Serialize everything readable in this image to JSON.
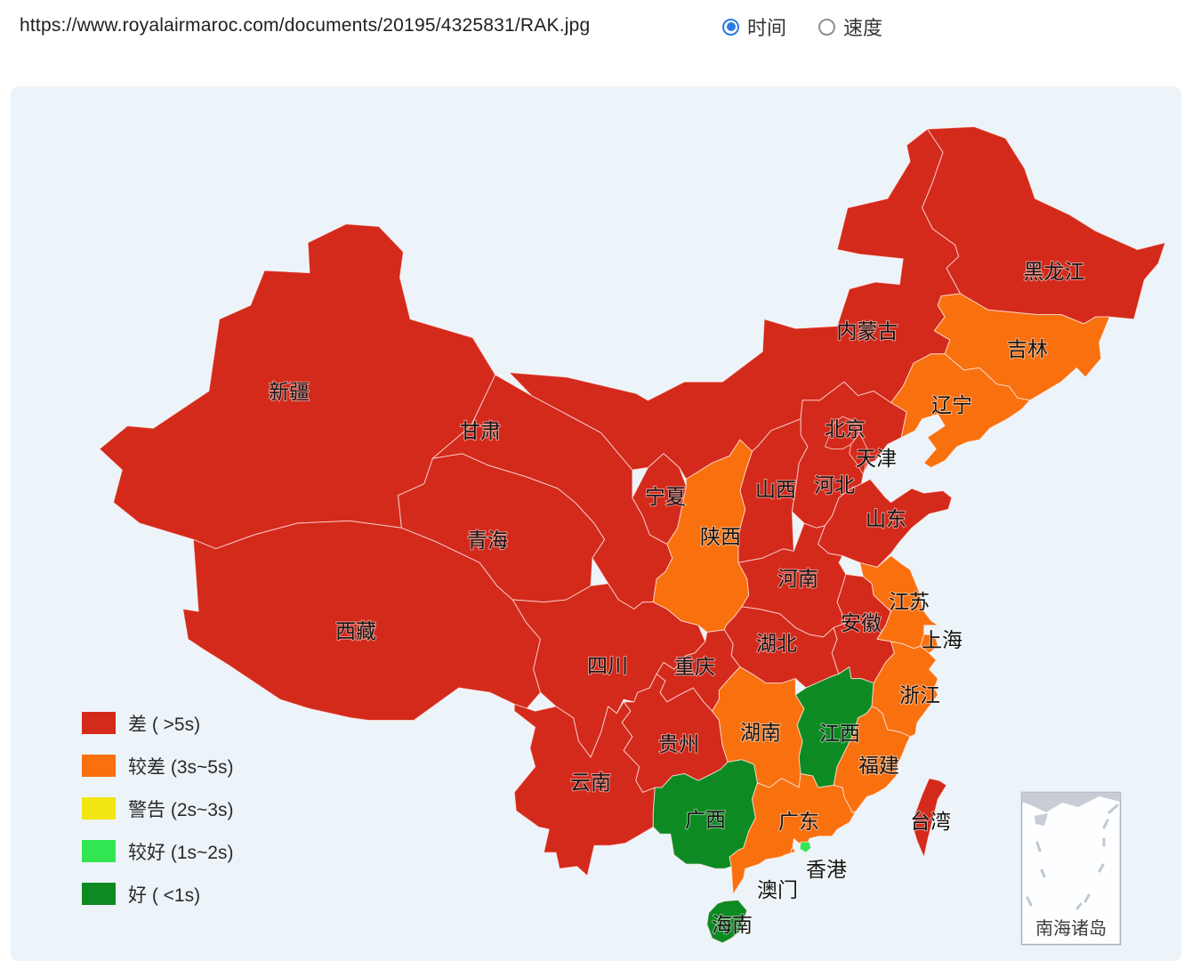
{
  "header": {
    "url": "https://www.royalairmaroc.com/documents/20195/4325831/RAK.jpg",
    "radio_options": [
      {
        "label": "时间",
        "selected": true
      },
      {
        "label": "速度",
        "selected": false
      }
    ]
  },
  "legend": {
    "items": [
      {
        "key": "差",
        "label": "差 ( >5s)",
        "color": "#d42a1b"
      },
      {
        "key": "较差",
        "label": "较差 (3s~5s)",
        "color": "#f9700f"
      },
      {
        "key": "警告",
        "label": "警告 (2s~3s)",
        "color": "#f1e512"
      },
      {
        "key": "较好",
        "label": "较好 (1s~2s)",
        "color": "#32e653"
      },
      {
        "key": "好",
        "label": "好 ( <1s)",
        "color": "#0e8a22"
      }
    ]
  },
  "map": {
    "sea_color": "#edf4f9",
    "status_colors": {
      "差": "#d42a1b",
      "较差": "#f9700f",
      "警告": "#f1e512",
      "较好": "#32e653",
      "好": "#0e8a22"
    },
    "inset_label": "南海诸岛",
    "provinces": [
      {
        "name": "新疆",
        "id": "xinjiang",
        "status": "差"
      },
      {
        "name": "西藏",
        "id": "xizang",
        "status": "差"
      },
      {
        "name": "青海",
        "id": "qinghai",
        "status": "差"
      },
      {
        "name": "甘肃",
        "id": "gansu",
        "status": "差"
      },
      {
        "name": "内蒙古",
        "id": "neimenggu",
        "status": "差"
      },
      {
        "name": "黑龙江",
        "id": "heilongjiang",
        "status": "差"
      },
      {
        "name": "四川",
        "id": "sichuan",
        "status": "差"
      },
      {
        "name": "云南",
        "id": "yunnan",
        "status": "差"
      },
      {
        "name": "贵州",
        "id": "guizhou",
        "status": "差"
      },
      {
        "name": "湖北",
        "id": "hubei",
        "status": "差"
      },
      {
        "name": "河南",
        "id": "henan",
        "status": "差"
      },
      {
        "name": "河北",
        "id": "hebei",
        "status": "差"
      },
      {
        "name": "山西",
        "id": "shanxi",
        "status": "差"
      },
      {
        "name": "山东",
        "id": "shandong",
        "status": "差"
      },
      {
        "name": "安徽",
        "id": "anhui",
        "status": "差"
      },
      {
        "name": "吉林",
        "id": "jilin",
        "status": "较差"
      },
      {
        "name": "辽宁",
        "id": "liaoning",
        "status": "较差"
      },
      {
        "name": "陕西",
        "id": "shaanxi",
        "status": "较差"
      },
      {
        "name": "宁夏",
        "id": "ningxia",
        "status": "差"
      },
      {
        "name": "重庆",
        "id": "chongqing",
        "status": "差"
      },
      {
        "name": "湖南",
        "id": "hunan",
        "status": "较差"
      },
      {
        "name": "江西",
        "id": "jiangxi",
        "status": "好"
      },
      {
        "name": "浙江",
        "id": "zhejiang",
        "status": "较差"
      },
      {
        "name": "福建",
        "id": "fujian",
        "status": "较差"
      },
      {
        "name": "江苏",
        "id": "jiangsu",
        "status": "较差"
      },
      {
        "name": "上海",
        "id": "shanghai",
        "status": "较差"
      },
      {
        "name": "广西",
        "id": "guangxi",
        "status": "好"
      },
      {
        "name": "广东",
        "id": "guangdong",
        "status": "较差"
      },
      {
        "name": "海南",
        "id": "hainan",
        "status": "好"
      },
      {
        "name": "台湾",
        "id": "taiwan",
        "status": "差"
      },
      {
        "name": "北京",
        "id": "beijing",
        "status": "差"
      },
      {
        "name": "天津",
        "id": "tianjin",
        "status": "差"
      },
      {
        "name": "香港",
        "id": "xianggang",
        "status": "较好"
      },
      {
        "name": "澳门",
        "id": "aomen",
        "status": "较差"
      }
    ]
  }
}
